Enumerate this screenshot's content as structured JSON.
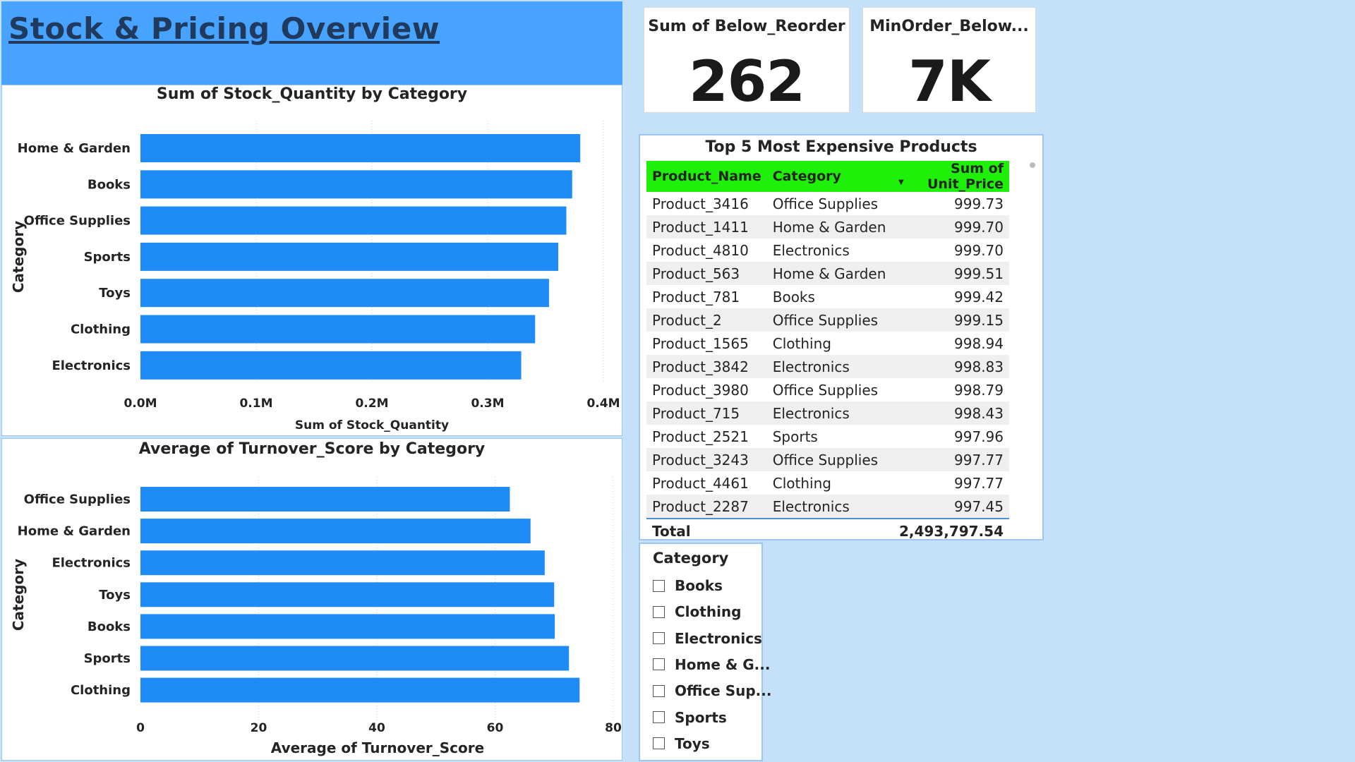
{
  "page": {
    "title": "Stock & Pricing Overview"
  },
  "colors": {
    "bar": "#1e8bf6",
    "header_bg": "#47a3fe",
    "table_header": "#1ff00a",
    "background": "#c5e1fa"
  },
  "cards": [
    {
      "label": "Sum of Below_Reorder",
      "value": "262"
    },
    {
      "label": "MinOrder_Below...",
      "value": "7K"
    }
  ],
  "chart_data": [
    {
      "type": "bar",
      "orientation": "horizontal",
      "title": "Sum of Stock_Quantity by Category",
      "xlabel": "Sum of Stock_Quantity",
      "ylabel": "Category",
      "categories": [
        "Home & Garden",
        "Books",
        "Office Supplies",
        "Sports",
        "Toys",
        "Clothing",
        "Electronics"
      ],
      "values": [
        380000,
        373000,
        368000,
        361000,
        353000,
        341000,
        329000
      ],
      "xlim": [
        0,
        400000
      ],
      "ticks": [
        0,
        100000,
        200000,
        300000,
        400000
      ],
      "tick_labels": [
        "0.0M",
        "0.1M",
        "0.2M",
        "0.3M",
        "0.4M"
      ]
    },
    {
      "type": "bar",
      "orientation": "horizontal",
      "title": "Average of Turnover_Score by Category",
      "xlabel": "Average of Turnover_Score",
      "ylabel": "Category",
      "categories": [
        "Office Supplies",
        "Home & Garden",
        "Electronics",
        "Toys",
        "Books",
        "Sports",
        "Clothing"
      ],
      "values": [
        62.5,
        66.0,
        68.4,
        70.0,
        70.1,
        72.5,
        74.3
      ],
      "xlim": [
        0,
        80
      ],
      "ticks": [
        0,
        20,
        40,
        60,
        80
      ],
      "tick_labels": [
        "0",
        "20",
        "40",
        "60",
        "80"
      ]
    }
  ],
  "table": {
    "title": "Top 5 Most Expensive Products",
    "columns": [
      "Product_Name",
      "Category",
      "Sum of Unit_Price"
    ],
    "rows": [
      [
        "Product_3416",
        "Office Supplies",
        "999.73"
      ],
      [
        "Product_1411",
        "Home & Garden",
        "999.70"
      ],
      [
        "Product_4810",
        "Electronics",
        "999.70"
      ],
      [
        "Product_563",
        "Home & Garden",
        "999.51"
      ],
      [
        "Product_781",
        "Books",
        "999.42"
      ],
      [
        "Product_2",
        "Office Supplies",
        "999.15"
      ],
      [
        "Product_1565",
        "Clothing",
        "998.94"
      ],
      [
        "Product_3842",
        "Electronics",
        "998.83"
      ],
      [
        "Product_3980",
        "Office Supplies",
        "998.79"
      ],
      [
        "Product_715",
        "Electronics",
        "998.43"
      ],
      [
        "Product_2521",
        "Sports",
        "997.96"
      ],
      [
        "Product_3243",
        "Office Supplies",
        "997.77"
      ],
      [
        "Product_4461",
        "Clothing",
        "997.77"
      ],
      [
        "Product_2287",
        "Electronics",
        "997.45"
      ]
    ],
    "total_label": "Total",
    "total_value": "2,493,797.54"
  },
  "slicer": {
    "title": "Category",
    "items": [
      "Books",
      "Clothing",
      "Electronics",
      "Home & G...",
      "Office Sup...",
      "Sports",
      "Toys"
    ]
  }
}
